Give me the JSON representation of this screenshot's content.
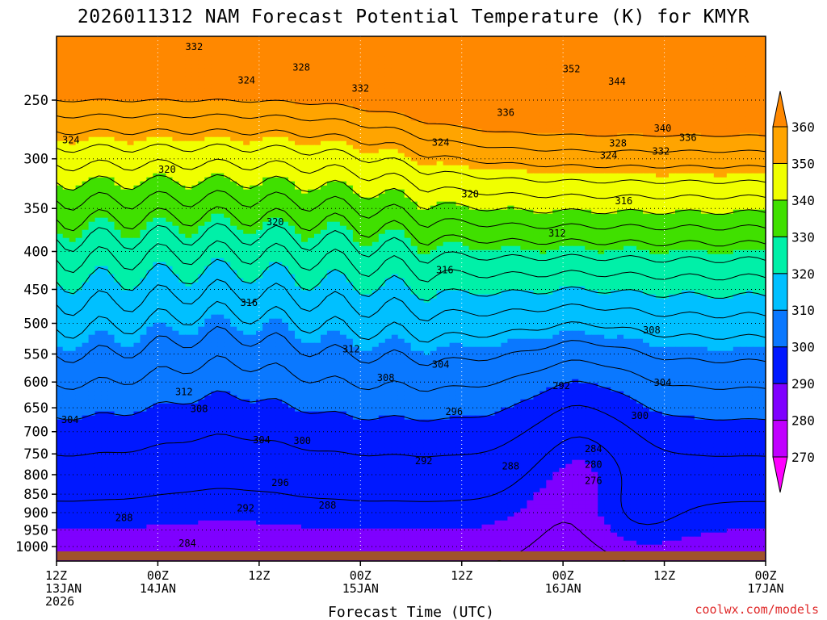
{
  "chart_data": {
    "type": "heatmap",
    "title": "2026011312 NAM Forecast Potential Temperature (K) for KMYR",
    "xlabel": "Forecast Time (UTC)",
    "credit": "coolwx.com/models",
    "y_scale": "log-pressure",
    "y_reversed": true,
    "y_ticks": [
      250,
      300,
      350,
      400,
      450,
      500,
      550,
      600,
      650,
      700,
      750,
      800,
      850,
      900,
      950,
      1000
    ],
    "x_ticks": [
      {
        "hour": 0,
        "lines": [
          "12Z",
          "13JAN",
          "2026"
        ]
      },
      {
        "hour": 12,
        "lines": [
          "00Z",
          "14JAN"
        ]
      },
      {
        "hour": 24,
        "lines": [
          "12Z"
        ]
      },
      {
        "hour": 36,
        "lines": [
          "00Z",
          "15JAN"
        ]
      },
      {
        "hour": 48,
        "lines": [
          "12Z"
        ]
      },
      {
        "hour": 60,
        "lines": [
          "00Z",
          "16JAN"
        ]
      },
      {
        "hour": 72,
        "lines": [
          "12Z"
        ]
      },
      {
        "hour": 84,
        "lines": [
          "00Z",
          "17JAN"
        ]
      }
    ],
    "grid": true,
    "colorbar": {
      "levels": [
        270,
        280,
        290,
        300,
        310,
        320,
        330,
        340,
        350,
        360
      ],
      "colors": [
        "#ff00ff",
        "#c000ff",
        "#7f00ff",
        "#0018ff",
        "#0a78ff",
        "#00c0ff",
        "#00f0a8",
        "#40e000",
        "#f0ff00",
        "#ffa400",
        "#ff8800"
      ]
    },
    "contour_labels": [
      {
        "text": "332",
        "h": 16.3,
        "p": 212
      },
      {
        "text": "328",
        "h": 29.0,
        "p": 226
      },
      {
        "text": "324",
        "h": 22.5,
        "p": 235
      },
      {
        "text": "332",
        "h": 36.0,
        "p": 241
      },
      {
        "text": "352",
        "h": 61.0,
        "p": 227
      },
      {
        "text": "344",
        "h": 66.4,
        "p": 236
      },
      {
        "text": "336",
        "h": 53.2,
        "p": 260
      },
      {
        "text": "324",
        "h": 1.7,
        "p": 283
      },
      {
        "text": "324",
        "h": 45.5,
        "p": 285
      },
      {
        "text": "340",
        "h": 71.8,
        "p": 273
      },
      {
        "text": "336",
        "h": 74.8,
        "p": 281
      },
      {
        "text": "328",
        "h": 66.5,
        "p": 286
      },
      {
        "text": "332",
        "h": 71.6,
        "p": 293
      },
      {
        "text": "324",
        "h": 65.4,
        "p": 297
      },
      {
        "text": "320",
        "h": 13.1,
        "p": 310
      },
      {
        "text": "320",
        "h": 49.0,
        "p": 335
      },
      {
        "text": "316",
        "h": 67.2,
        "p": 342
      },
      {
        "text": "320",
        "h": 25.9,
        "p": 365
      },
      {
        "text": "312",
        "h": 59.3,
        "p": 378
      },
      {
        "text": "316",
        "h": 46.0,
        "p": 424
      },
      {
        "text": "316",
        "h": 22.8,
        "p": 469
      },
      {
        "text": "308",
        "h": 70.5,
        "p": 511
      },
      {
        "text": "312",
        "h": 34.9,
        "p": 542
      },
      {
        "text": "304",
        "h": 45.5,
        "p": 568
      },
      {
        "text": "308",
        "h": 39.0,
        "p": 592
      },
      {
        "text": "292",
        "h": 59.8,
        "p": 607
      },
      {
        "text": "304",
        "h": 71.8,
        "p": 601
      },
      {
        "text": "312",
        "h": 15.1,
        "p": 619
      },
      {
        "text": "308",
        "h": 16.9,
        "p": 652
      },
      {
        "text": "296",
        "h": 47.1,
        "p": 658
      },
      {
        "text": "300",
        "h": 69.1,
        "p": 666
      },
      {
        "text": "304",
        "h": 1.6,
        "p": 675
      },
      {
        "text": "304",
        "h": 24.3,
        "p": 718
      },
      {
        "text": "300",
        "h": 29.1,
        "p": 720
      },
      {
        "text": "284",
        "h": 63.6,
        "p": 738
      },
      {
        "text": "292",
        "h": 43.5,
        "p": 767
      },
      {
        "text": "280",
        "h": 63.6,
        "p": 775
      },
      {
        "text": "288",
        "h": 53.8,
        "p": 779
      },
      {
        "text": "276",
        "h": 63.6,
        "p": 815
      },
      {
        "text": "296",
        "h": 26.5,
        "p": 820
      },
      {
        "text": "292",
        "h": 22.4,
        "p": 888
      },
      {
        "text": "288",
        "h": 32.1,
        "p": 880
      },
      {
        "text": "288",
        "h": 8.0,
        "p": 915
      },
      {
        "text": "284",
        "h": 15.5,
        "p": 990
      }
    ]
  }
}
